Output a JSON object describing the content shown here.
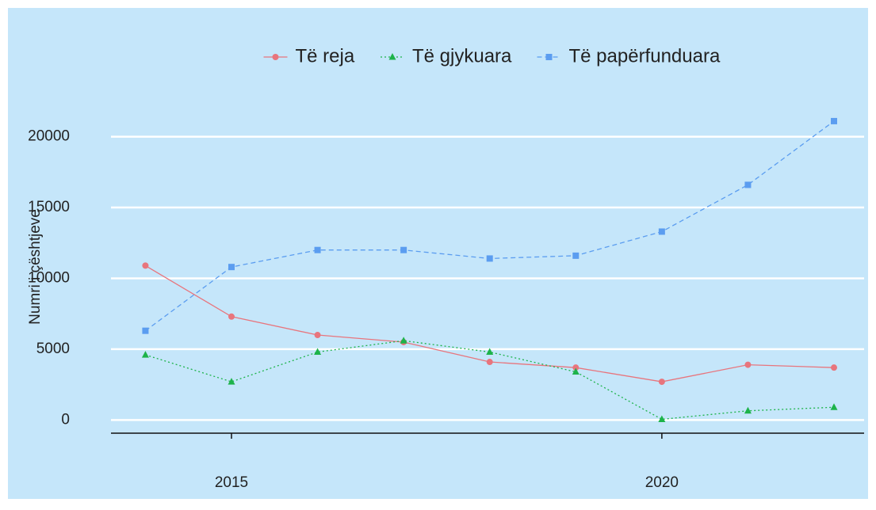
{
  "chart_data": {
    "type": "line",
    "y_label": "Numri i çështjeve",
    "x": [
      2014,
      2015,
      2016,
      2017,
      2018,
      2019,
      2020,
      2021,
      2022
    ],
    "series": [
      {
        "name": "Të reja",
        "color": "#e8757d",
        "dash": "solid",
        "marker": "circle",
        "values": [
          10900,
          7300,
          6000,
          5500,
          4100,
          3700,
          2700,
          3900,
          3700
        ]
      },
      {
        "name": "Të gjykuara",
        "color": "#1db34a",
        "dash": "dotted",
        "marker": "triangle",
        "values": [
          4600,
          2700,
          4800,
          5600,
          4800,
          3400,
          50,
          650,
          900
        ]
      },
      {
        "name": "Të papërfunduara",
        "color": "#5b9df0",
        "dash": "dashed",
        "marker": "square",
        "values": [
          6300,
          10800,
          12000,
          12000,
          11400,
          11600,
          13300,
          16600,
          21100
        ]
      }
    ],
    "xlim": [
      2013.6,
      2022.35
    ],
    "xticks": [
      2015,
      2020
    ],
    "ylim": [
      -930,
      23500
    ],
    "yticks": [
      0,
      5000,
      10000,
      15000,
      20000
    ],
    "grid": true,
    "legend": "top"
  }
}
